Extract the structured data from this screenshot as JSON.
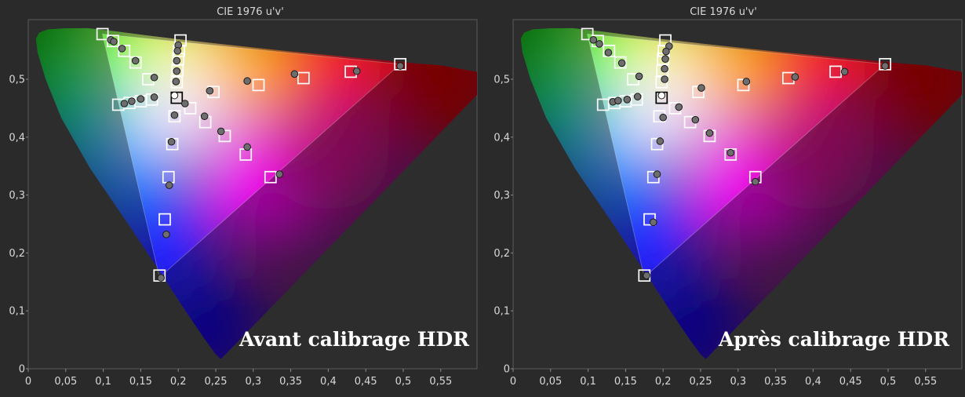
{
  "chart_data": [
    {
      "type": "scatter",
      "title": "CIE 1976 u'v'",
      "annotation": "Avant calibrage HDR",
      "xlim": [
        0,
        0.6
      ],
      "ylim": [
        0,
        0.6
      ],
      "x_ticks": [
        "0",
        "0,05",
        "0,1",
        "0,15",
        "0,2",
        "0,25",
        "0,3",
        "0,35",
        "0,4",
        "0,45",
        "0,5",
        "0,55"
      ],
      "y_ticks": [
        "0",
        "0,1",
        "0,2",
        "0,3",
        "0,4",
        "0,5"
      ],
      "gamut_triangle": [
        [
          0.496,
          0.526
        ],
        [
          0.099,
          0.578
        ],
        [
          0.175,
          0.158
        ]
      ],
      "white_point": [
        0.198,
        0.468
      ],
      "series": [
        {
          "values_targets": [
            [
              0.099,
              0.578
            ],
            [
              0.113,
              0.566
            ],
            [
              0.128,
              0.549
            ],
            [
              0.143,
              0.529
            ],
            [
              0.16,
              0.5
            ],
            [
              0.203,
              0.567
            ],
            [
              0.201,
              0.549
            ],
            [
              0.2,
              0.535
            ],
            [
              0.199,
              0.515
            ],
            [
              0.198,
              0.495
            ],
            [
              0.198,
              0.468
            ],
            [
              0.12,
              0.456
            ],
            [
              0.135,
              0.459
            ],
            [
              0.15,
              0.462
            ],
            [
              0.165,
              0.465
            ],
            [
              0.496,
              0.526
            ],
            [
              0.43,
              0.513
            ],
            [
              0.367,
              0.502
            ],
            [
              0.307,
              0.49
            ],
            [
              0.247,
              0.478
            ],
            [
              0.216,
              0.45
            ],
            [
              0.236,
              0.426
            ],
            [
              0.262,
              0.402
            ],
            [
              0.29,
              0.37
            ],
            [
              0.323,
              0.331
            ],
            [
              0.195,
              0.436
            ],
            [
              0.192,
              0.388
            ],
            [
              0.187,
              0.331
            ],
            [
              0.182,
              0.258
            ],
            [
              0.175,
              0.161
            ]
          ],
          "values_measured": [
            [
              0.11,
              0.568
            ],
            [
              0.114,
              0.565
            ],
            [
              0.125,
              0.553
            ],
            [
              0.143,
              0.532
            ],
            [
              0.168,
              0.503
            ],
            [
              0.2,
              0.559
            ],
            [
              0.199,
              0.549
            ],
            [
              0.198,
              0.532
            ],
            [
              0.198,
              0.514
            ],
            [
              0.197,
              0.496
            ],
            [
              0.195,
              0.472
            ],
            [
              0.128,
              0.458
            ],
            [
              0.138,
              0.462
            ],
            [
              0.15,
              0.466
            ],
            [
              0.168,
              0.469
            ],
            [
              0.496,
              0.523
            ],
            [
              0.438,
              0.514
            ],
            [
              0.355,
              0.509
            ],
            [
              0.292,
              0.497
            ],
            [
              0.242,
              0.48
            ],
            [
              0.209,
              0.458
            ],
            [
              0.235,
              0.436
            ],
            [
              0.257,
              0.41
            ],
            [
              0.292,
              0.383
            ],
            [
              0.335,
              0.336
            ],
            [
              0.195,
              0.438
            ],
            [
              0.191,
              0.392
            ],
            [
              0.188,
              0.317
            ],
            [
              0.184,
              0.232
            ],
            [
              0.177,
              0.157
            ]
          ]
        }
      ]
    },
    {
      "type": "scatter",
      "title": "CIE 1976 u'v'",
      "annotation": "Après calibrage HDR",
      "xlim": [
        0,
        0.6
      ],
      "ylim": [
        0,
        0.6
      ],
      "x_ticks": [
        "0",
        "0,05",
        "0,1",
        "0,15",
        "0,2",
        "0,25",
        "0,3",
        "0,35",
        "0,4",
        "0,45",
        "0,5",
        "0,55"
      ],
      "y_ticks": [
        "0",
        "0,1",
        "0,2",
        "0,3",
        "0,4",
        "0,5"
      ],
      "gamut_triangle": [
        [
          0.496,
          0.526
        ],
        [
          0.099,
          0.578
        ],
        [
          0.175,
          0.158
        ]
      ],
      "white_point": [
        0.198,
        0.468
      ],
      "series": [
        {
          "values_targets": [
            [
              0.099,
              0.578
            ],
            [
              0.113,
              0.566
            ],
            [
              0.128,
              0.549
            ],
            [
              0.143,
              0.529
            ],
            [
              0.16,
              0.5
            ],
            [
              0.203,
              0.567
            ],
            [
              0.201,
              0.549
            ],
            [
              0.2,
              0.535
            ],
            [
              0.199,
              0.515
            ],
            [
              0.198,
              0.495
            ],
            [
              0.198,
              0.468
            ],
            [
              0.12,
              0.456
            ],
            [
              0.135,
              0.459
            ],
            [
              0.15,
              0.462
            ],
            [
              0.165,
              0.465
            ],
            [
              0.496,
              0.526
            ],
            [
              0.43,
              0.513
            ],
            [
              0.367,
              0.502
            ],
            [
              0.307,
              0.49
            ],
            [
              0.247,
              0.478
            ],
            [
              0.216,
              0.45
            ],
            [
              0.236,
              0.426
            ],
            [
              0.262,
              0.402
            ],
            [
              0.29,
              0.37
            ],
            [
              0.323,
              0.331
            ],
            [
              0.195,
              0.436
            ],
            [
              0.192,
              0.388
            ],
            [
              0.187,
              0.331
            ],
            [
              0.182,
              0.258
            ],
            [
              0.175,
              0.161
            ]
          ],
          "values_measured": [
            [
              0.107,
              0.568
            ],
            [
              0.115,
              0.561
            ],
            [
              0.127,
              0.546
            ],
            [
              0.145,
              0.528
            ],
            [
              0.168,
              0.505
            ],
            [
              0.208,
              0.557
            ],
            [
              0.204,
              0.548
            ],
            [
              0.203,
              0.535
            ],
            [
              0.202,
              0.518
            ],
            [
              0.202,
              0.5
            ],
            [
              0.198,
              0.472
            ],
            [
              0.133,
              0.461
            ],
            [
              0.14,
              0.463
            ],
            [
              0.152,
              0.465
            ],
            [
              0.166,
              0.47
            ],
            [
              0.496,
              0.523
            ],
            [
              0.442,
              0.513
            ],
            [
              0.376,
              0.504
            ],
            [
              0.311,
              0.496
            ],
            [
              0.251,
              0.485
            ],
            [
              0.221,
              0.452
            ],
            [
              0.243,
              0.43
            ],
            [
              0.262,
              0.407
            ],
            [
              0.29,
              0.373
            ],
            [
              0.323,
              0.323
            ],
            [
              0.2,
              0.434
            ],
            [
              0.196,
              0.393
            ],
            [
              0.192,
              0.336
            ],
            [
              0.187,
              0.253
            ],
            [
              0.178,
              0.161
            ]
          ]
        }
      ]
    }
  ]
}
